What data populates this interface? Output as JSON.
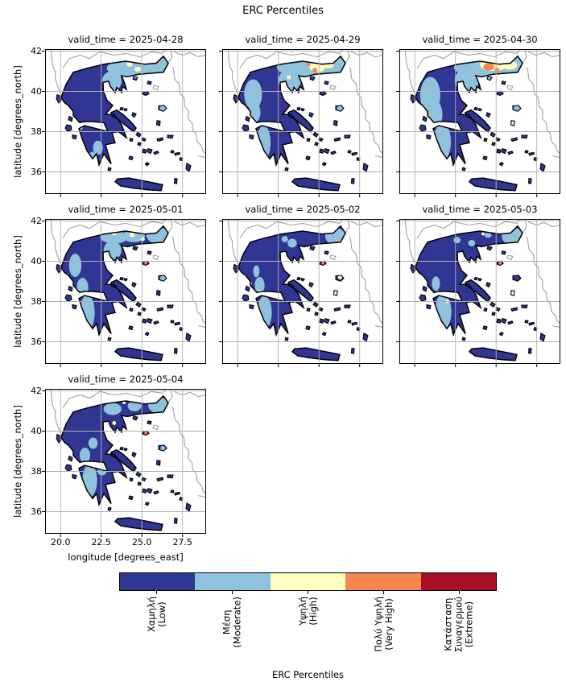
{
  "figure": {
    "suptitle": "ERC Percentiles",
    "xlabel": "longitude [degrees_east]",
    "ylabel": "latitude [degrees_north]"
  },
  "chart_data": {
    "type": "heatmap",
    "subtype": "categorical-choropleth-facets",
    "title": "ERC Percentiles",
    "region": "Greece",
    "facet_variable": "valid_time",
    "xlabel": "longitude [degrees_east]",
    "ylabel": "latitude [degrees_north]",
    "xticks": [
      20.0,
      22.5,
      25.0,
      27.5
    ],
    "xtick_labels": [
      "20.0",
      "22.5",
      "25.0",
      "27.5"
    ],
    "yticks": [
      42,
      40,
      38,
      36
    ],
    "ytick_labels": [
      "42",
      "40",
      "38",
      "36"
    ],
    "xlim": [
      19.05,
      28.95
    ],
    "ylim": [
      34.9,
      42.1
    ],
    "grid": true,
    "base_category_index": 0,
    "categories": [
      {
        "key": "low",
        "label_el": "Χαμηλή",
        "label_en": "(Low)",
        "color": "#313695"
      },
      {
        "key": "moderate",
        "label_el": "Μέση",
        "label_en": "(Moderate)",
        "color": "#8fc3dd"
      },
      {
        "key": "high",
        "label_el": "Υψηλή",
        "label_en": "(High)",
        "color": "#ffffbf"
      },
      {
        "key": "very_high",
        "label_el": "Πολύ Υψηλή",
        "label_en": "(Very High)",
        "color": "#f7874e"
      },
      {
        "key": "extreme",
        "label_el": "Κατάσταση Συναγερμού",
        "label_en": "(Extreme)",
        "color": "#a60f26"
      }
    ],
    "colorbar": {
      "label": "ERC Percentiles",
      "tick_labels": [
        "Χαμηλή\n(Low)",
        "Μέση\n(Moderate)",
        "Υψηλή\n(High)",
        "Πολύ Υψηλή\n(Very High)",
        "Κατάσταση\nΣυναγερμού\n(Extreme)"
      ]
    },
    "colors": {
      "coastline": "#000000",
      "background_coast": "#a0a0a0",
      "grid": "#b0b0b0",
      "sea": "#ffffff"
    },
    "facets": [
      {
        "title": "valid_time = 2025-04-28",
        "date": "2025-04-28",
        "row": 0,
        "col": 0,
        "patches": [
          [
            24.6,
            41.15,
            1.75,
            0.5,
            1
          ],
          [
            23.15,
            40.5,
            0.6,
            0.5,
            1
          ],
          [
            26.1,
            41.3,
            0.55,
            0.4,
            1
          ],
          [
            26.3,
            39.15,
            0.2,
            0.15,
            1
          ],
          [
            22.3,
            37.2,
            0.3,
            0.35,
            1
          ],
          [
            21.95,
            36.85,
            0.18,
            0.15,
            1
          ],
          [
            21.25,
            38.2,
            0.12,
            0.12,
            1
          ],
          [
            24.25,
            41.35,
            0.18,
            0.12,
            2
          ],
          [
            24.75,
            41.1,
            0.2,
            0.12,
            2
          ]
        ]
      },
      {
        "title": "valid_time = 2025-04-29",
        "date": "2025-04-29",
        "row": 0,
        "col": 1,
        "patches": [
          [
            24.4,
            41.2,
            2.0,
            0.52,
            1
          ],
          [
            23.2,
            40.55,
            0.7,
            0.55,
            1
          ],
          [
            26.05,
            41.3,
            0.6,
            0.42,
            1
          ],
          [
            20.95,
            39.85,
            0.55,
            0.75,
            1
          ],
          [
            21.05,
            38.95,
            0.35,
            0.5,
            1
          ],
          [
            21.6,
            37.45,
            0.42,
            0.85,
            1
          ],
          [
            26.3,
            39.15,
            0.2,
            0.15,
            1
          ],
          [
            24.9,
            41.25,
            0.5,
            0.3,
            2
          ],
          [
            25.6,
            41.32,
            0.3,
            0.18,
            2
          ],
          [
            23.15,
            40.7,
            0.13,
            0.1,
            2
          ],
          [
            24.35,
            41.35,
            0.13,
            0.1,
            3
          ],
          [
            24.75,
            41.05,
            0.15,
            0.12,
            3
          ],
          [
            20.78,
            38.95,
            0.09,
            0.08,
            3
          ]
        ]
      },
      {
        "title": "valid_time = 2025-04-30",
        "date": "2025-04-30",
        "row": 0,
        "col": 2,
        "patches": [
          [
            24.5,
            41.2,
            2.1,
            0.55,
            1
          ],
          [
            23.2,
            40.55,
            0.75,
            0.6,
            1
          ],
          [
            26.05,
            41.3,
            0.7,
            0.45,
            1
          ],
          [
            24.65,
            40.65,
            0.2,
            0.15,
            1
          ],
          [
            20.95,
            39.8,
            0.62,
            0.92,
            1
          ],
          [
            21.25,
            38.85,
            0.45,
            0.68,
            1
          ],
          [
            21.7,
            37.5,
            0.52,
            0.95,
            1
          ],
          [
            26.3,
            39.15,
            0.22,
            0.17,
            1
          ],
          [
            24.85,
            41.32,
            0.85,
            0.3,
            2
          ],
          [
            25.85,
            41.3,
            0.45,
            0.22,
            2
          ],
          [
            26.05,
            38.4,
            0.12,
            0.18,
            2
          ],
          [
            24.55,
            41.22,
            0.34,
            0.18,
            3
          ],
          [
            25.05,
            41.05,
            0.16,
            0.12,
            3
          ],
          [
            20.8,
            38.9,
            0.1,
            0.09,
            3
          ],
          [
            21.0,
            38.38,
            0.1,
            0.09,
            3
          ],
          [
            21.95,
            36.65,
            0.09,
            0.08,
            3
          ],
          [
            20.95,
            38.5,
            0.05,
            0.05,
            4
          ]
        ]
      },
      {
        "title": "valid_time = 2025-05-01",
        "date": "2025-05-01",
        "row": 1,
        "col": 0,
        "patches": [
          [
            23.3,
            41.2,
            0.85,
            0.32,
            1
          ],
          [
            24.5,
            41.25,
            0.7,
            0.3,
            1
          ],
          [
            25.95,
            41.3,
            0.68,
            0.42,
            1
          ],
          [
            23.2,
            40.55,
            0.55,
            0.45,
            1
          ],
          [
            20.9,
            39.8,
            0.38,
            0.58,
            1
          ],
          [
            21.35,
            38.7,
            0.35,
            0.48,
            1
          ],
          [
            21.65,
            37.45,
            0.45,
            0.88,
            1
          ],
          [
            26.3,
            39.15,
            0.18,
            0.14,
            1
          ],
          [
            23.3,
            41.38,
            0.13,
            0.1,
            2
          ],
          [
            24.4,
            41.32,
            0.16,
            0.11,
            2
          ],
          [
            25.05,
            41.1,
            0.13,
            0.1,
            2
          ],
          [
            20.85,
            38.35,
            0.09,
            0.08,
            3
          ],
          [
            25.25,
            39.9,
            0.09,
            0.08,
            3
          ]
        ]
      },
      {
        "title": "valid_time = 2025-05-02",
        "date": "2025-05-02",
        "row": 1,
        "col": 1,
        "patches": [
          [
            21.65,
            37.45,
            0.45,
            0.82,
            1
          ],
          [
            21.35,
            38.8,
            0.3,
            0.42,
            1
          ],
          [
            26.0,
            41.25,
            0.62,
            0.42,
            1
          ],
          [
            23.35,
            40.9,
            0.28,
            0.22,
            1
          ],
          [
            22.9,
            41.1,
            0.2,
            0.16,
            1
          ],
          [
            21.15,
            39.5,
            0.2,
            0.3,
            1
          ],
          [
            21.4,
            38.5,
            0.09,
            0.08,
            2
          ],
          [
            26.05,
            38.4,
            0.12,
            0.17,
            2
          ],
          [
            26.3,
            39.2,
            0.13,
            0.1,
            2
          ],
          [
            20.8,
            38.9,
            0.08,
            0.07,
            3
          ],
          [
            25.25,
            39.9,
            0.09,
            0.08,
            3
          ]
        ]
      },
      {
        "title": "valid_time = 2025-05-03",
        "date": "2025-05-03",
        "row": 1,
        "col": 2,
        "patches": [
          [
            21.75,
            37.5,
            0.5,
            0.9,
            1
          ],
          [
            26.0,
            41.25,
            0.65,
            0.45,
            1
          ],
          [
            22.6,
            41.05,
            0.22,
            0.16,
            1
          ],
          [
            23.5,
            40.9,
            0.22,
            0.16,
            1
          ],
          [
            24.5,
            41.3,
            0.22,
            0.13,
            1
          ],
          [
            21.3,
            38.9,
            0.25,
            0.35,
            1
          ],
          [
            21.4,
            38.45,
            0.12,
            0.1,
            2
          ],
          [
            24.2,
            41.36,
            0.1,
            0.08,
            2
          ],
          [
            22.0,
            38.0,
            0.1,
            0.08,
            2
          ],
          [
            26.05,
            38.4,
            0.12,
            0.17,
            2
          ],
          [
            20.8,
            38.4,
            0.08,
            0.07,
            3
          ],
          [
            21.95,
            36.6,
            0.08,
            0.07,
            3
          ],
          [
            25.25,
            39.9,
            0.09,
            0.08,
            3
          ]
        ]
      },
      {
        "title": "valid_time = 2025-05-04",
        "date": "2025-05-04",
        "row": 2,
        "col": 0,
        "patches": [
          [
            23.2,
            41.1,
            0.55,
            0.3,
            1
          ],
          [
            24.55,
            41.25,
            0.42,
            0.26,
            1
          ],
          [
            26.0,
            41.3,
            0.62,
            0.4,
            1
          ],
          [
            22.0,
            39.4,
            0.28,
            0.28,
            1
          ],
          [
            21.5,
            38.8,
            0.32,
            0.38,
            1
          ],
          [
            21.8,
            37.55,
            0.45,
            0.82,
            1
          ],
          [
            22.55,
            38.0,
            0.28,
            0.2,
            1
          ],
          [
            26.3,
            39.15,
            0.15,
            0.12,
            1
          ],
          [
            23.9,
            41.42,
            0.11,
            0.08,
            2
          ],
          [
            21.8,
            38.3,
            0.1,
            0.08,
            2
          ],
          [
            23.3,
            40.4,
            0.12,
            0.1,
            2
          ],
          [
            20.85,
            38.4,
            0.08,
            0.07,
            3
          ],
          [
            25.25,
            39.9,
            0.09,
            0.08,
            3
          ]
        ]
      }
    ]
  }
}
